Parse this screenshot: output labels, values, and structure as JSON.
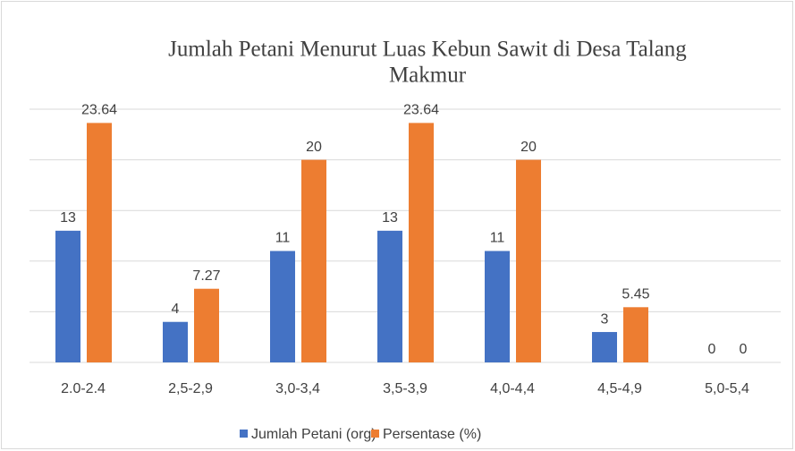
{
  "chart_data": {
    "type": "bar",
    "title_lines": [
      "Jumlah Petani Menurut Luas Kebun Sawit di Desa Talang",
      "Makmur"
    ],
    "categories": [
      "2.0-2.4",
      "2,5-2,9",
      "3,0-3,4",
      "3,5-3,9",
      "4,0-4,4",
      "4,5-4,9",
      "5,0-5,4"
    ],
    "series": [
      {
        "name": "Jumlah Petani (org)",
        "color": "#4472c4",
        "values": [
          13,
          4,
          11,
          13,
          11,
          3,
          0
        ]
      },
      {
        "name": "Persentase (%)",
        "color": "#ed7d31",
        "values": [
          23.64,
          7.27,
          20,
          23.64,
          20,
          5.45,
          0
        ]
      }
    ],
    "ylim": [
      0,
      25
    ],
    "yticks": [
      0,
      5,
      10,
      15,
      20,
      25
    ],
    "grid": true,
    "legend": "bottom"
  }
}
